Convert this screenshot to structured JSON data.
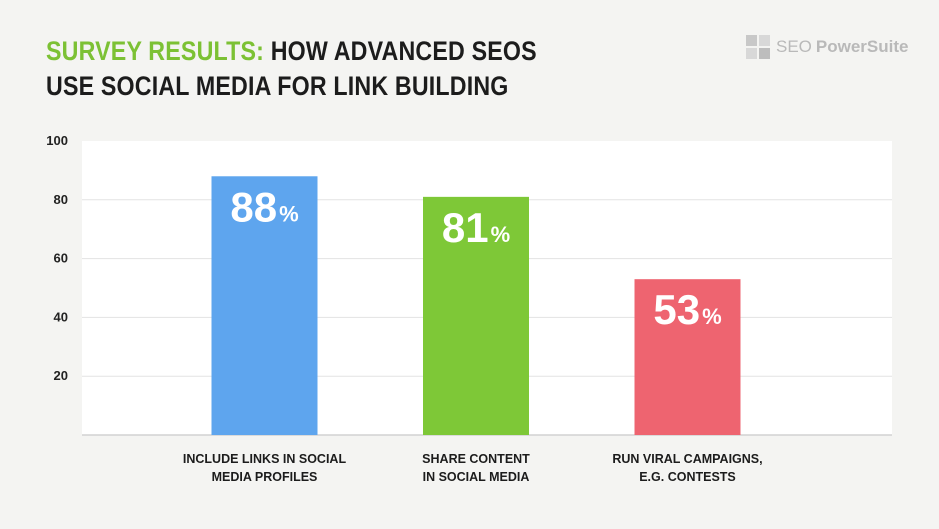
{
  "header": {
    "title_accent": "SURVEY RESULTS:",
    "title_rest_line1": "HOW ADVANCED SEOS",
    "title_line2": "USE SOCIAL MEDIA FOR LINK BUILDING"
  },
  "brand": {
    "logo_icon": "seo-powersuite-logo-icon",
    "name_light": "SEO",
    "name_bold": "PowerSuite"
  },
  "chart_data": {
    "type": "bar",
    "title": "SURVEY RESULTS: HOW ADVANCED SEOS USE SOCIAL MEDIA FOR LINK BUILDING",
    "categories": [
      [
        "INCLUDE LINKS IN SOCIAL",
        "MEDIA PROFILES"
      ],
      [
        "SHARE CONTENT",
        "IN SOCIAL MEDIA"
      ],
      [
        "RUN VIRAL CAMPAIGNS,",
        "E.G. CONTESTS"
      ]
    ],
    "values": [
      88,
      81,
      53
    ],
    "value_labels": [
      "88",
      "81",
      "53"
    ],
    "value_suffix": "%",
    "colors": [
      "#5ea5ee",
      "#7ec837",
      "#ee6470"
    ],
    "yticks": [
      20,
      40,
      60,
      80,
      100
    ],
    "ylim": [
      0,
      100
    ],
    "grid": true,
    "xlabel": "",
    "ylabel": ""
  }
}
